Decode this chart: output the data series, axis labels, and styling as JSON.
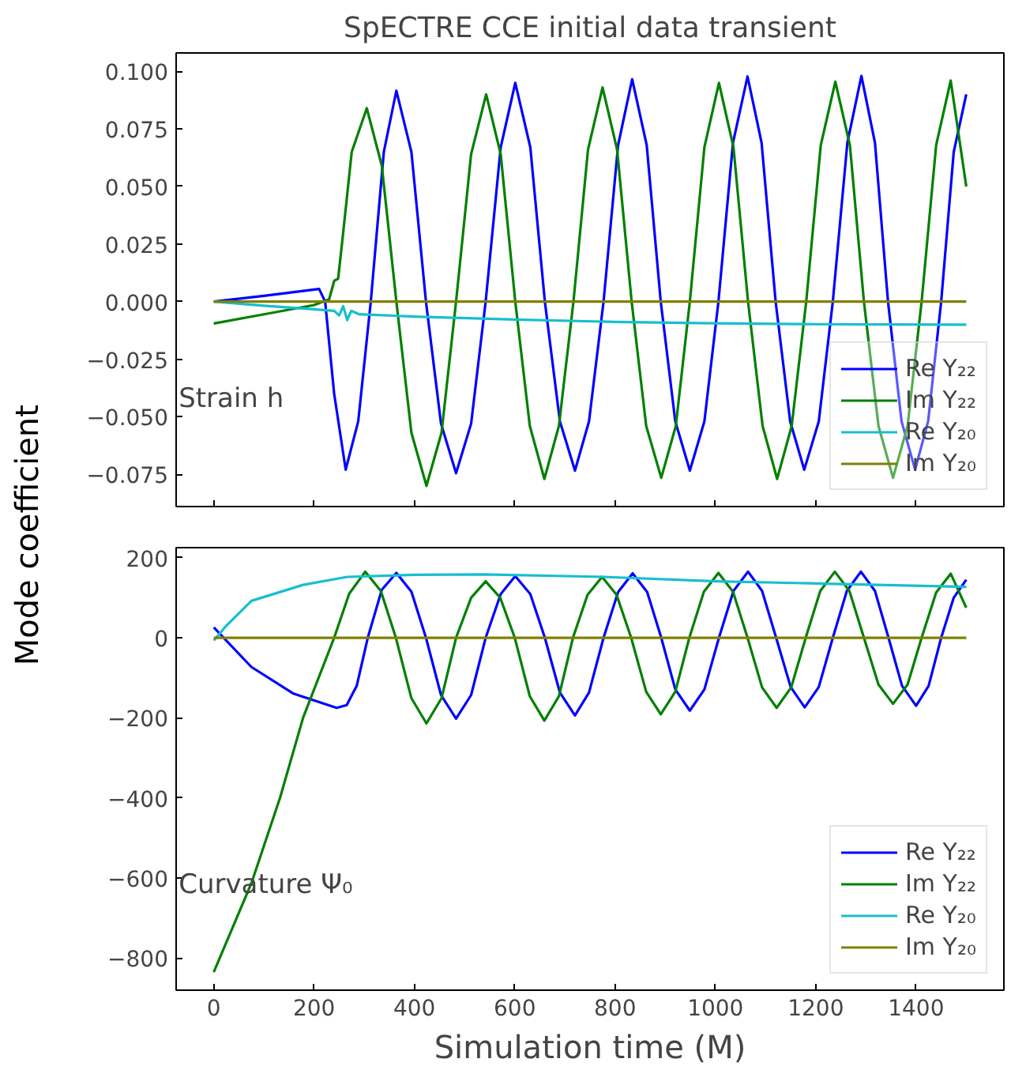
{
  "chart_data": [
    {
      "type": "line",
      "title": "SpECTRE CCE initial data transient",
      "ylabel": "Mode coefficient",
      "annotations": [
        "Strain h"
      ],
      "legend": "bottom right",
      "grid": false,
      "tick_labels": "y",
      "xlim": [
        -75,
        1575
      ],
      "xticks": [
        0,
        200,
        400,
        600,
        800,
        1000,
        1200,
        1400
      ],
      "ylim": [
        -0.089,
        0.108
      ],
      "yticks": [
        {
          "value": -0.075,
          "label": "−0.075"
        },
        {
          "value": -0.05,
          "label": "−0.050"
        },
        {
          "value": -0.025,
          "label": "−0.025"
        },
        {
          "value": 0,
          "label": "0.000"
        },
        {
          "value": 0.025,
          "label": "0.025"
        },
        {
          "value": 0.05,
          "label": "0.050"
        },
        {
          "value": 0.075,
          "label": "0.075"
        },
        {
          "value": 0.1,
          "label": "0.100"
        }
      ],
      "series": [
        {
          "name": "Re Y₂₂",
          "color": "#0000ff",
          "x": [
            0,
            100,
            210,
            222,
            240,
            263,
            288,
            313,
            339,
            364,
            394,
            423,
            453,
            483,
            513,
            542,
            572,
            601,
            631,
            660,
            690,
            720,
            748,
            777,
            806,
            834,
            863,
            891,
            920,
            949,
            978,
            1006,
            1035,
            1064,
            1092,
            1120,
            1149,
            1177,
            1206,
            1234,
            1263,
            1291,
            1318,
            1344,
            1371,
            1398,
            1424,
            1450,
            1475,
            1500
          ],
          "values": [
            0,
            0.0025,
            0.0055,
            0,
            -0.04,
            -0.073,
            -0.052,
            0,
            0.065,
            0.0916,
            0.065,
            0,
            -0.053,
            -0.0745,
            -0.053,
            0,
            0.067,
            0.095,
            0.067,
            0,
            -0.052,
            -0.0734,
            -0.052,
            0,
            0.068,
            0.0966,
            0.068,
            0,
            -0.052,
            -0.0734,
            -0.052,
            0,
            0.069,
            0.0978,
            0.069,
            0,
            -0.052,
            -0.073,
            -0.052,
            0,
            0.069,
            0.098,
            0.069,
            0,
            -0.052,
            -0.073,
            -0.052,
            0,
            0.065,
            0.09
          ]
        },
        {
          "name": "Im Y₂₂",
          "color": "#008000",
          "x": [
            0,
            100,
            200,
            230,
            240,
            248,
            258,
            275,
            305,
            335,
            364,
            394,
            424,
            454,
            483,
            513,
            543,
            572,
            601,
            630,
            659,
            688,
            717,
            746,
            775,
            804,
            833,
            862,
            892,
            921,
            949,
            978,
            1007,
            1036,
            1065,
            1094,
            1123,
            1152,
            1181,
            1210,
            1239,
            1268,
            1296,
            1325,
            1354,
            1383,
            1411,
            1440,
            1469,
            1500
          ],
          "values": [
            -0.0095,
            -0.0055,
            -0.0015,
            0.001,
            0.009,
            0.01,
            0.03,
            0.065,
            0.084,
            0.059,
            0,
            -0.057,
            -0.08,
            -0.057,
            0,
            0.064,
            0.09,
            0.064,
            0,
            -0.054,
            -0.077,
            -0.054,
            0,
            0.066,
            0.093,
            0.066,
            0,
            -0.054,
            -0.0765,
            -0.054,
            0,
            0.067,
            0.095,
            0.067,
            0,
            -0.054,
            -0.077,
            -0.054,
            0,
            0.068,
            0.0955,
            0.068,
            0,
            -0.054,
            -0.0765,
            -0.054,
            0,
            0.068,
            0.096,
            0.05
          ]
        },
        {
          "name": "Re Y₂₀",
          "color": "#17becf",
          "x": [
            0,
            100,
            200,
            240,
            250,
            258,
            266,
            274,
            290,
            400,
            600,
            800,
            1000,
            1200,
            1500
          ],
          "values": [
            0,
            -0.0018,
            -0.0033,
            -0.004,
            -0.006,
            -0.002,
            -0.008,
            -0.004,
            -0.0055,
            -0.0065,
            -0.0078,
            -0.0088,
            -0.0094,
            -0.0098,
            -0.01
          ]
        },
        {
          "name": "Im Y₂₀",
          "color": "#808000",
          "x": [
            0,
            1500
          ],
          "values": [
            0,
            0
          ]
        }
      ]
    },
    {
      "type": "line",
      "xlabel": "Simulation time (M)",
      "annotations": [
        "Curvature Ψ₀"
      ],
      "legend": "bottom right",
      "grid": false,
      "xlim": [
        -75,
        1575
      ],
      "xticks": [
        0,
        200,
        400,
        600,
        800,
        1000,
        1200,
        1400
      ],
      "ylim": [
        -880,
        225
      ],
      "yticks": [
        {
          "value": -800,
          "label": "−800"
        },
        {
          "value": -600,
          "label": "−600"
        },
        {
          "value": -400,
          "label": "−400"
        },
        {
          "value": -200,
          "label": "−200"
        },
        0,
        200
      ],
      "series": [
        {
          "name": "Re Y₂₂",
          "color": "#0000ff",
          "x": [
            0,
            75,
            158,
            245,
            265,
            285,
            307,
            335,
            364,
            394,
            423,
            453,
            483,
            513,
            542,
            572,
            601,
            631,
            660,
            690,
            720,
            748,
            777,
            806,
            835,
            864,
            892,
            920,
            949,
            978,
            1007,
            1036,
            1065,
            1093,
            1121,
            1150,
            1178,
            1206,
            1234,
            1262,
            1290,
            1318,
            1345,
            1372,
            1400,
            1425,
            1450,
            1475,
            1500
          ],
          "values": [
            26,
            -73,
            -139,
            -175,
            -168,
            -120,
            0,
            120,
            162,
            115,
            0,
            -143,
            -202,
            -143,
            0,
            109,
            154,
            109,
            0,
            -137,
            -194,
            -137,
            0,
            114,
            161,
            114,
            0,
            -129,
            -182,
            -129,
            0,
            117,
            165,
            117,
            0,
            -123,
            -174,
            -123,
            0,
            117,
            165,
            117,
            0,
            -120,
            -170,
            -120,
            0,
            100,
            145
          ]
        },
        {
          "name": "Im Y₂₂",
          "color": "#008000",
          "x": [
            0,
            75,
            132,
            178,
            240,
            270,
            302,
            333,
            363,
            394,
            424,
            454,
            483,
            513,
            542,
            571,
            600,
            630,
            659,
            688,
            716,
            745,
            774,
            803,
            832,
            862,
            891,
            920,
            948,
            977,
            1006,
            1035,
            1064,
            1093,
            1122,
            1151,
            1180,
            1209,
            1238,
            1267,
            1296,
            1325,
            1354,
            1383,
            1411,
            1440,
            1469,
            1500
          ],
          "values": [
            -835,
            -613,
            -400,
            -200,
            0,
            110,
            165,
            117,
            0,
            -151,
            -214,
            -151,
            0,
            100,
            141,
            100,
            0,
            -146,
            -207,
            -146,
            0,
            107,
            152,
            107,
            0,
            -135,
            -191,
            -135,
            0,
            115,
            162,
            115,
            0,
            -124,
            -175,
            -124,
            0,
            117,
            165,
            117,
            0,
            -117,
            -165,
            -117,
            0,
            113,
            160,
            75
          ]
        },
        {
          "name": "Re Y₂₀",
          "color": "#17becf",
          "x": [
            0,
            25,
            75,
            178,
            266,
            400,
            539,
            776,
            1003,
            1220,
            1500
          ],
          "values": [
            -7,
            30,
            92,
            132,
            152,
            157,
            158,
            152,
            141,
            135,
            127
          ]
        },
        {
          "name": "Im Y₂₀",
          "color": "#808000",
          "x": [
            0,
            1500
          ],
          "values": [
            0,
            0
          ]
        }
      ]
    }
  ]
}
